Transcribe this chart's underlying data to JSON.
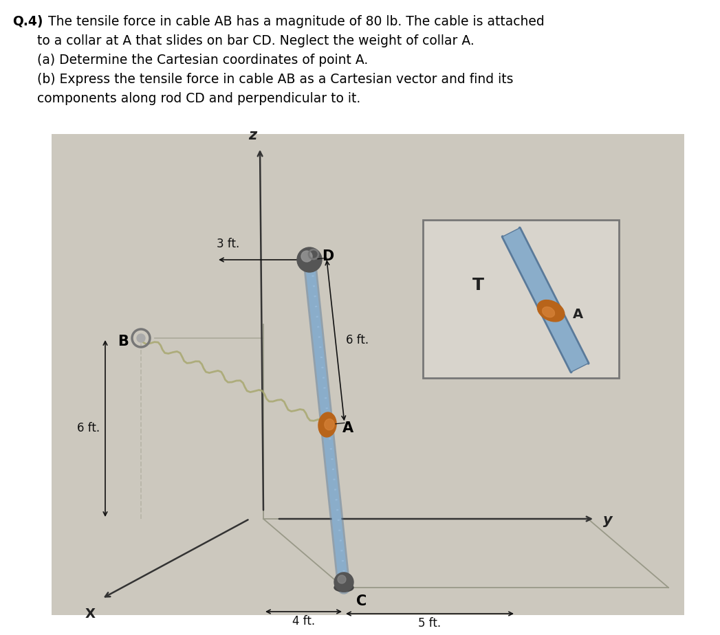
{
  "bg_color": "#ffffff",
  "diagram_bg": "#ccc8be",
  "text_fontsize": 13.5,
  "label_fontsize": 12,
  "rod_color_main": "#8aadca",
  "rod_color_dark": "#5a7a9a",
  "collar_color": "#b8641a",
  "collar_highlight": "#d8843a",
  "cable_color": "#a8a870",
  "arrow_blue": "#3366cc",
  "dim_color": "#111111",
  "axis_color": "#333333",
  "floor_color": "#999988",
  "inset_bg": "#d8d4cc",
  "inset_border": "#777777",
  "sphere_color": "#555555",
  "sphere_hi": "#888888",
  "text_line1": "Q.4) The tensile force in cable AB has a magnitude of 80 lb. The cable is attached",
  "text_line2": "      to a collar at A that slides on bar CD. Neglect the weight of collar A.",
  "text_line3": "      (a) Determine the Cartesian coordinates of point A.",
  "text_line4": "      (b) Express the tensile force in cable AB as a Cartesian vector and find its",
  "text_line5": "      components along rod CD and perpendicular to it."
}
